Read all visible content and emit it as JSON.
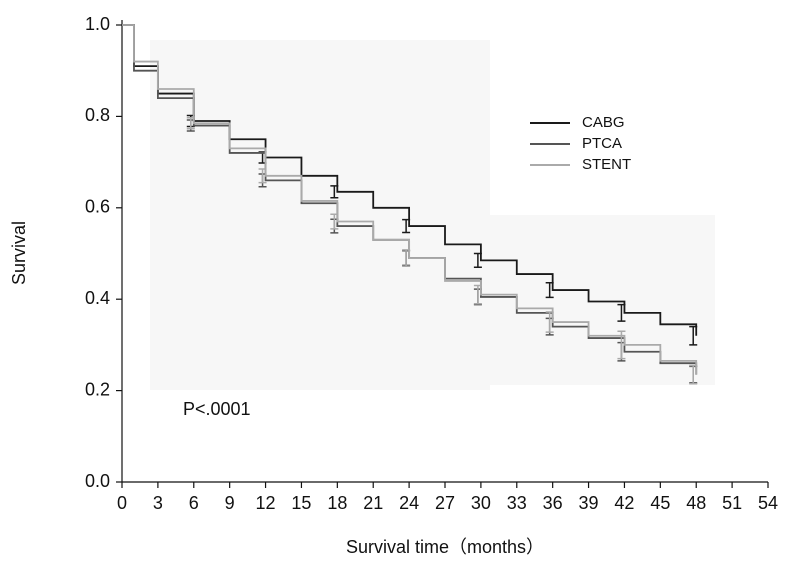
{
  "chart_data": {
    "type": "step",
    "x_label": "Survival time（months）",
    "y_label": "Survival",
    "annotation": "P<.0001",
    "x": [
      0,
      1,
      3,
      6,
      9,
      12,
      15,
      18,
      21,
      24,
      27,
      30,
      33,
      36,
      39,
      42,
      45,
      48
    ],
    "series": [
      {
        "name": "CABG",
        "color": "#1a1a1a",
        "values": [
          1.0,
          0.91,
          0.85,
          0.79,
          0.75,
          0.71,
          0.67,
          0.635,
          0.6,
          0.56,
          0.52,
          0.485,
          0.455,
          0.42,
          0.395,
          0.37,
          0.345,
          0.32
        ],
        "errors": [
          null,
          null,
          null,
          0.012,
          null,
          0.012,
          null,
          0.013,
          null,
          0.014,
          null,
          0.015,
          null,
          0.016,
          null,
          0.018,
          null,
          0.02
        ]
      },
      {
        "name": "PTCA",
        "color": "#555555",
        "values": [
          1.0,
          0.9,
          0.84,
          0.78,
          0.72,
          0.66,
          0.61,
          0.56,
          0.53,
          0.49,
          0.445,
          0.405,
          0.37,
          0.34,
          0.315,
          0.285,
          0.26,
          0.235
        ],
        "errors": [
          null,
          null,
          null,
          0.012,
          null,
          0.014,
          null,
          0.015,
          null,
          0.016,
          null,
          0.017,
          null,
          0.018,
          null,
          0.02,
          null,
          0.018
        ]
      },
      {
        "name": "STENT",
        "color": "#aaaaaa",
        "values": [
          1.0,
          0.92,
          0.86,
          0.785,
          0.73,
          0.67,
          0.615,
          0.57,
          0.53,
          0.49,
          0.44,
          0.41,
          0.38,
          0.35,
          0.32,
          0.3,
          0.265,
          0.235
        ],
        "errors": [
          null,
          null,
          null,
          0.012,
          null,
          0.015,
          null,
          0.016,
          null,
          0.018,
          null,
          0.02,
          null,
          0.022,
          null,
          0.03,
          null,
          0.02
        ]
      }
    ],
    "xlim": [
      0,
      54
    ],
    "xticks": [
      0,
      3,
      6,
      9,
      12,
      15,
      18,
      21,
      24,
      27,
      30,
      33,
      36,
      39,
      42,
      45,
      48,
      51,
      54
    ],
    "ylim": [
      0,
      1
    ],
    "yticks": [
      {
        "value": 0,
        "label": "0.0"
      },
      0.2,
      0.4,
      0.6,
      0.8,
      {
        "value": 1,
        "label": "1.0"
      }
    ],
    "legend": "upper right",
    "grid": false
  }
}
